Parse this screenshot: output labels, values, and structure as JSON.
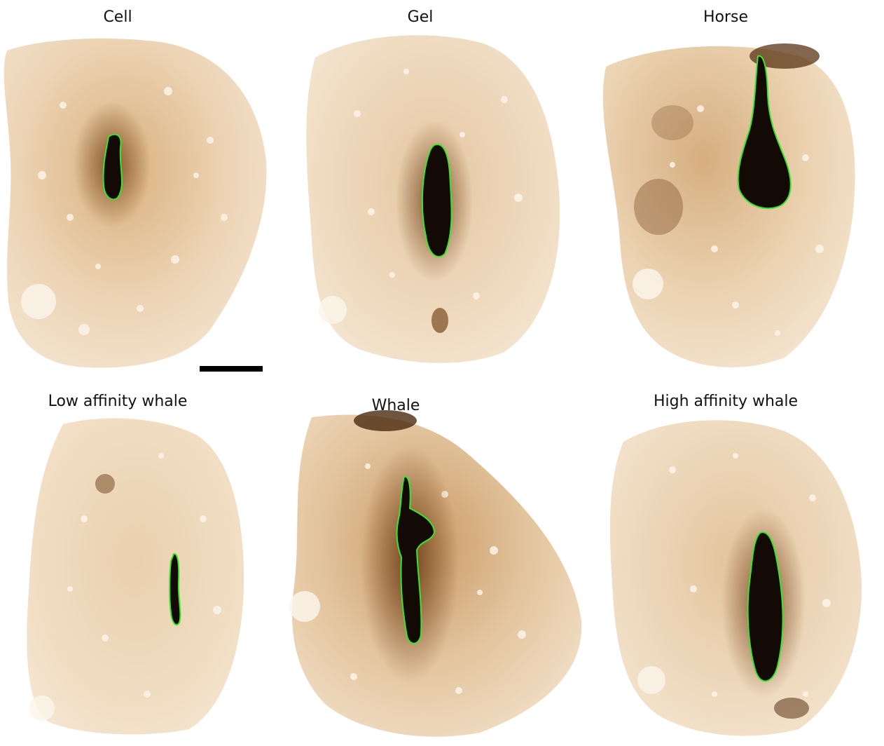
{
  "panels": [
    {
      "id": "cell",
      "label": "Cell"
    },
    {
      "id": "gel",
      "label": "Gel"
    },
    {
      "id": "horse",
      "label": "Horse"
    },
    {
      "id": "low_affinity_whale",
      "label": "Low affinity whale"
    },
    {
      "id": "whale",
      "label": "Whale"
    },
    {
      "id": "high_affinity_whale",
      "label": "High affinity whale"
    }
  ],
  "colors": {
    "tissue_light": "#f2dcc0",
    "tissue_mid": "#e3bf93",
    "tissue_dark": "#8a5a2c",
    "lesion": "#140a05",
    "lesion_outline": "#39e62a",
    "vacuole": "#fbf4ea",
    "scale_bar": "#000000"
  }
}
